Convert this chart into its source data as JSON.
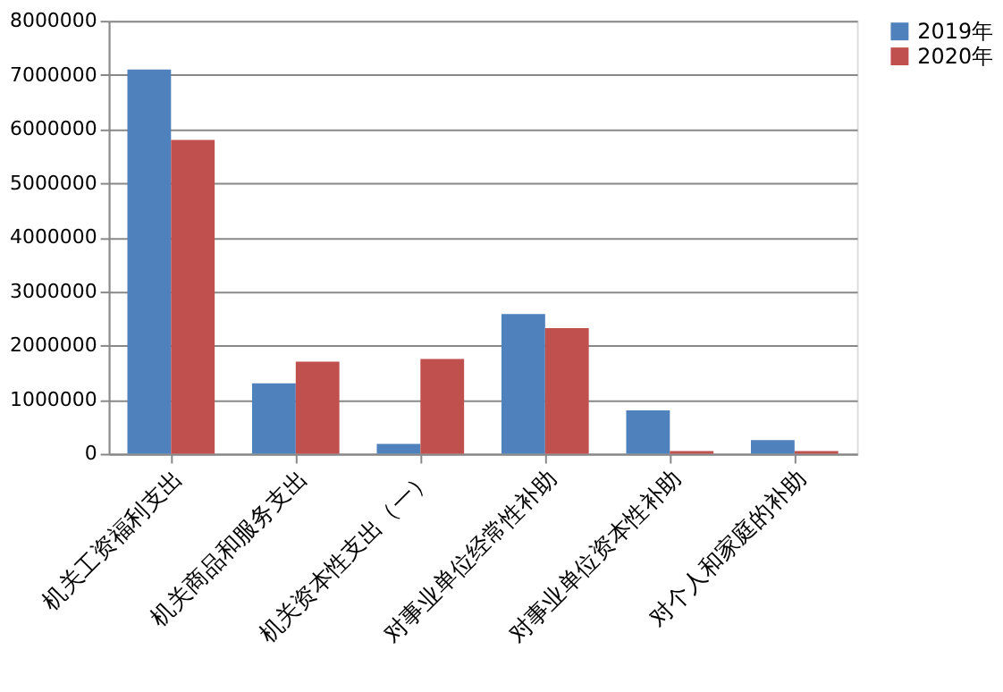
{
  "chart_data": {
    "type": "bar",
    "categories": [
      "机关工资福利支出",
      "机关商品和服务支出",
      "机关资本性支出（一）",
      "对事业单位经常性补助",
      "对事业单位资本性补助",
      "对个人和家庭的补助"
    ],
    "series": [
      {
        "name": "2019年",
        "color": "#4f81bd",
        "values": [
          7100000,
          1300000,
          180000,
          2580000,
          800000,
          250000
        ]
      },
      {
        "name": "2020年",
        "color": "#c0504d",
        "values": [
          5800000,
          1700000,
          1750000,
          2320000,
          50000,
          50000
        ]
      }
    ],
    "ylim": [
      0,
      8000000
    ],
    "yticks": [
      0,
      1000000,
      2000000,
      3000000,
      4000000,
      5000000,
      6000000,
      7000000,
      8000000
    ],
    "grid": "y",
    "legend": "right"
  }
}
